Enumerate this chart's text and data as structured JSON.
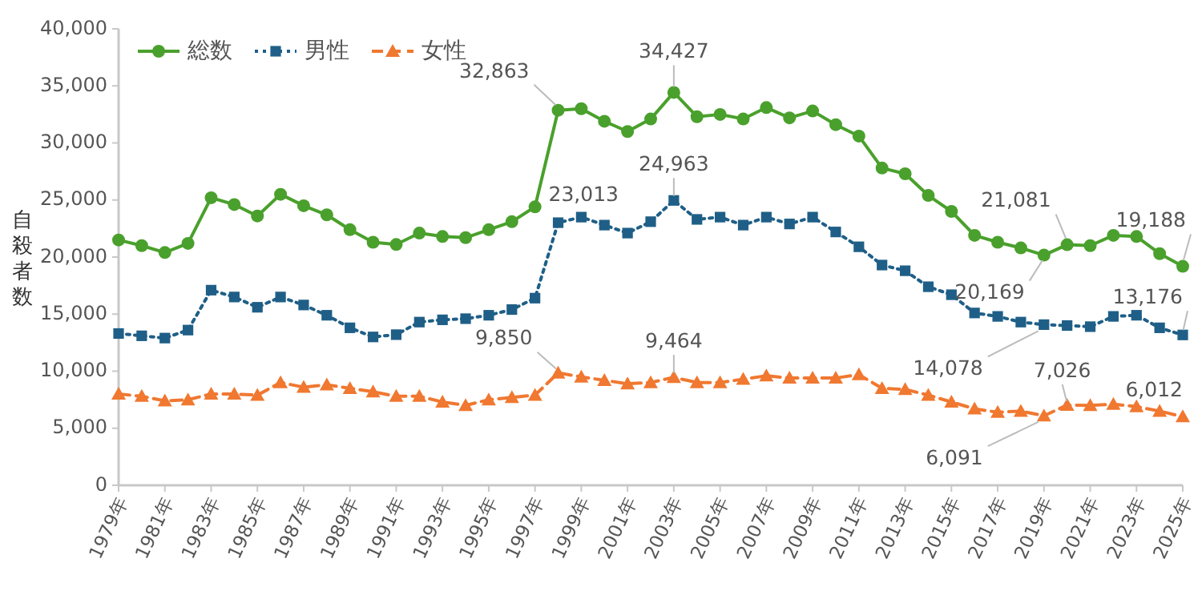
{
  "chart_data": {
    "type": "line",
    "ylabel": "自殺者数",
    "categories": [
      "1979年",
      null,
      "1981年",
      null,
      "1983年",
      null,
      "1985年",
      null,
      "1987年",
      null,
      "1989年",
      null,
      "1991年",
      null,
      "1993年",
      null,
      "1995年",
      null,
      "1997年",
      null,
      "1999年",
      null,
      "2001年",
      null,
      "2003年",
      null,
      "2005年",
      null,
      "2007年",
      null,
      "2009年",
      null,
      "2011年",
      null,
      "2013年",
      null,
      "2015年",
      null,
      "2017年",
      null,
      "2019年",
      null,
      "2021年",
      null,
      "2023年",
      null,
      "2025年"
    ],
    "ylim": [
      0,
      40000
    ],
    "yticks": [
      {
        "value": 0,
        "label": "0"
      },
      {
        "value": 5000,
        "label": "5,000"
      },
      {
        "value": 10000,
        "label": "10,000"
      },
      {
        "value": 15000,
        "label": "15,000"
      },
      {
        "value": 20000,
        "label": "20,000"
      },
      {
        "value": 25000,
        "label": "25,000"
      },
      {
        "value": 30000,
        "label": "30,000"
      },
      {
        "value": 35000,
        "label": "35,000"
      },
      {
        "value": 40000,
        "label": "40,000"
      }
    ],
    "grid": false,
    "legend": "top left",
    "series": [
      {
        "name": "総数",
        "color": "#4aa02c",
        "marker": "circle",
        "line_style": "solid",
        "values": [
          21500,
          21000,
          20400,
          21200,
          25200,
          24600,
          23600,
          25500,
          24500,
          23700,
          22400,
          21300,
          21100,
          22100,
          21800,
          21700,
          22400,
          23100,
          24400,
          32863,
          33000,
          31900,
          31000,
          32100,
          34427,
          32300,
          32500,
          32100,
          33100,
          32200,
          32800,
          31600,
          30600,
          27800,
          27300,
          25400,
          24000,
          21900,
          21300,
          20800,
          20169,
          21081,
          21000,
          21900,
          21800,
          20300,
          19188
        ],
        "value_labels": [
          null,
          null,
          null,
          null,
          null,
          null,
          null,
          null,
          null,
          null,
          null,
          null,
          null,
          null,
          null,
          null,
          null,
          null,
          null,
          "32,863",
          null,
          null,
          null,
          null,
          "34,427",
          null,
          null,
          null,
          null,
          null,
          null,
          null,
          null,
          null,
          null,
          null,
          null,
          null,
          null,
          null,
          "20,169",
          "21,081",
          null,
          null,
          null,
          null,
          "19,188"
        ]
      },
      {
        "name": "男性",
        "color": "#1f5f87",
        "marker": "square",
        "line_style": "dotted",
        "values": [
          13300,
          13100,
          12900,
          13600,
          17100,
          16500,
          15600,
          16500,
          15800,
          14900,
          13800,
          13000,
          13200,
          14300,
          14500,
          14600,
          14900,
          15400,
          16400,
          23013,
          23500,
          22800,
          22100,
          23100,
          24963,
          23300,
          23500,
          22800,
          23500,
          22900,
          23500,
          22200,
          20900,
          19300,
          18800,
          17400,
          16700,
          15100,
          14800,
          14300,
          14078,
          14000,
          13900,
          14800,
          14900,
          13800,
          13176
        ],
        "value_labels": [
          null,
          null,
          null,
          null,
          null,
          null,
          null,
          null,
          null,
          null,
          null,
          null,
          null,
          null,
          null,
          null,
          null,
          null,
          null,
          "23,013",
          null,
          null,
          null,
          null,
          "24,963",
          null,
          null,
          null,
          null,
          null,
          null,
          null,
          null,
          null,
          null,
          null,
          null,
          null,
          null,
          null,
          "14,078",
          null,
          null,
          null,
          null,
          null,
          "13,176"
        ]
      },
      {
        "name": "女性",
        "color": "#f07830",
        "marker": "triangle",
        "line_style": "dashed",
        "values": [
          8000,
          7800,
          7400,
          7500,
          8000,
          8000,
          7900,
          9000,
          8600,
          8800,
          8500,
          8200,
          7800,
          7800,
          7300,
          7000,
          7500,
          7700,
          7900,
          9850,
          9500,
          9200,
          8900,
          9000,
          9464,
          9000,
          9000,
          9300,
          9600,
          9400,
          9400,
          9400,
          9700,
          8500,
          8400,
          7900,
          7300,
          6700,
          6400,
          6500,
          6091,
          7026,
          7000,
          7100,
          6900,
          6500,
          6012
        ],
        "value_labels": [
          null,
          null,
          null,
          null,
          null,
          null,
          null,
          null,
          null,
          null,
          null,
          null,
          null,
          null,
          null,
          null,
          null,
          null,
          null,
          "9,850",
          null,
          null,
          null,
          null,
          "9,464",
          null,
          null,
          null,
          null,
          null,
          null,
          null,
          null,
          null,
          null,
          null,
          null,
          null,
          null,
          null,
          "6,091",
          "7,026",
          null,
          null,
          null,
          null,
          "6,012"
        ]
      }
    ]
  }
}
